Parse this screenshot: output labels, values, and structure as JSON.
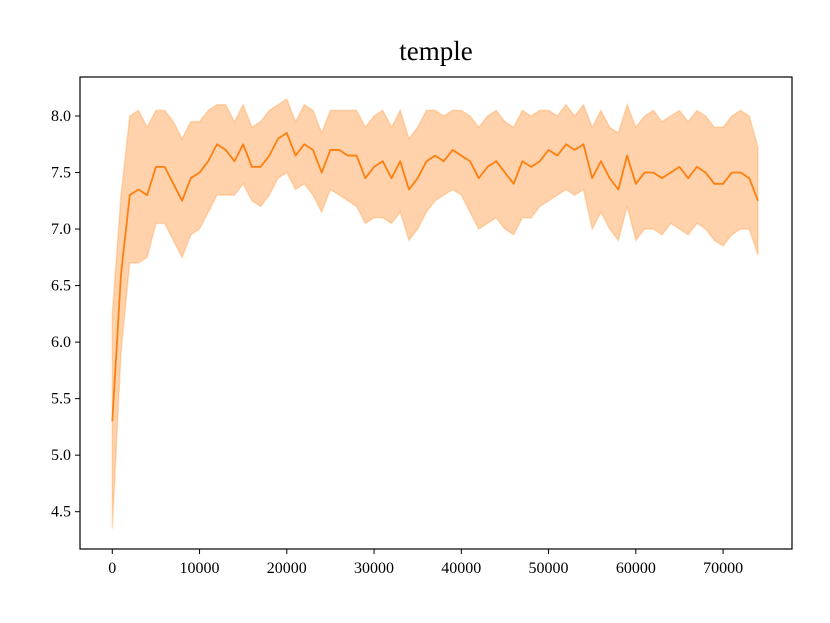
{
  "chart_data": {
    "type": "line",
    "title": "temple",
    "x": [
      0,
      1000,
      2000,
      3000,
      4000,
      5000,
      6000,
      7000,
      8000,
      9000,
      10000,
      11000,
      12000,
      13000,
      14000,
      15000,
      16000,
      17000,
      18000,
      19000,
      20000,
      21000,
      22000,
      23000,
      24000,
      25000,
      26000,
      27000,
      28000,
      29000,
      30000,
      31000,
      32000,
      33000,
      34000,
      35000,
      36000,
      37000,
      38000,
      39000,
      40000,
      41000,
      42000,
      43000,
      44000,
      45000,
      46000,
      47000,
      48000,
      49000,
      50000,
      51000,
      52000,
      53000,
      54000,
      55000,
      56000,
      57000,
      58000,
      59000,
      60000,
      61000,
      62000,
      63000,
      64000,
      65000,
      66000,
      67000,
      68000,
      69000,
      70000,
      71000,
      72000,
      73000,
      74000
    ],
    "values": [
      5.3,
      6.6,
      7.3,
      7.35,
      7.3,
      7.55,
      7.55,
      7.4,
      7.25,
      7.45,
      7.5,
      7.6,
      7.75,
      7.7,
      7.6,
      7.75,
      7.55,
      7.55,
      7.65,
      7.8,
      7.85,
      7.65,
      7.75,
      7.7,
      7.5,
      7.7,
      7.7,
      7.65,
      7.65,
      7.45,
      7.55,
      7.6,
      7.45,
      7.6,
      7.35,
      7.45,
      7.6,
      7.65,
      7.6,
      7.7,
      7.65,
      7.6,
      7.45,
      7.55,
      7.6,
      7.5,
      7.4,
      7.6,
      7.55,
      7.6,
      7.7,
      7.65,
      7.75,
      7.7,
      7.75,
      7.45,
      7.6,
      7.45,
      7.35,
      7.65,
      7.4,
      7.5,
      7.5,
      7.45,
      7.5,
      7.55,
      7.45,
      7.55,
      7.5,
      7.4,
      7.4,
      7.5,
      7.5,
      7.45,
      7.25
    ],
    "lower": [
      4.35,
      5.9,
      6.7,
      6.7,
      6.75,
      7.05,
      7.05,
      6.9,
      6.75,
      6.95,
      7.0,
      7.15,
      7.3,
      7.3,
      7.3,
      7.4,
      7.25,
      7.2,
      7.3,
      7.45,
      7.5,
      7.35,
      7.4,
      7.3,
      7.15,
      7.35,
      7.3,
      7.25,
      7.2,
      7.05,
      7.1,
      7.1,
      7.05,
      7.15,
      6.9,
      7.0,
      7.15,
      7.25,
      7.3,
      7.35,
      7.3,
      7.15,
      7.0,
      7.05,
      7.1,
      7.0,
      6.95,
      7.1,
      7.1,
      7.2,
      7.25,
      7.3,
      7.35,
      7.3,
      7.35,
      7.0,
      7.15,
      7.0,
      6.9,
      7.2,
      6.9,
      7.0,
      7.0,
      6.95,
      7.05,
      7.0,
      6.95,
      7.05,
      7.0,
      6.9,
      6.85,
      6.95,
      7.0,
      7.0,
      6.77
    ],
    "upper": [
      6.25,
      7.3,
      8.0,
      8.05,
      7.9,
      8.05,
      8.05,
      7.95,
      7.8,
      7.95,
      7.95,
      8.05,
      8.1,
      8.1,
      7.95,
      8.1,
      7.9,
      7.95,
      8.05,
      8.1,
      8.15,
      7.95,
      8.1,
      8.05,
      7.85,
      8.05,
      8.05,
      8.05,
      8.05,
      7.9,
      8.0,
      8.05,
      7.9,
      8.05,
      7.8,
      7.9,
      8.05,
      8.05,
      8.0,
      8.05,
      8.05,
      8.0,
      7.9,
      8.0,
      8.05,
      7.95,
      7.9,
      8.05,
      8.0,
      8.05,
      8.05,
      8.0,
      8.1,
      8.0,
      8.1,
      7.9,
      8.05,
      7.9,
      7.85,
      8.1,
      7.9,
      8.0,
      8.05,
      7.95,
      8.0,
      8.05,
      7.95,
      8.05,
      8.0,
      7.9,
      7.9,
      8.0,
      8.05,
      8.0,
      7.72
    ],
    "color": "#ff7f0e",
    "xlim": [
      -3700,
      77900
    ],
    "ylim": [
      4.17,
      8.345
    ],
    "xticks": [
      0,
      10000,
      20000,
      30000,
      40000,
      50000,
      60000,
      70000
    ],
    "yticks": [
      4.5,
      {
        "value": 5,
        "label": "5.0"
      },
      5.5,
      {
        "value": 6,
        "label": "6.0"
      },
      6.5,
      {
        "value": 7,
        "label": "7.0"
      },
      7.5,
      {
        "value": 8,
        "label": "8.0"
      }
    ]
  }
}
